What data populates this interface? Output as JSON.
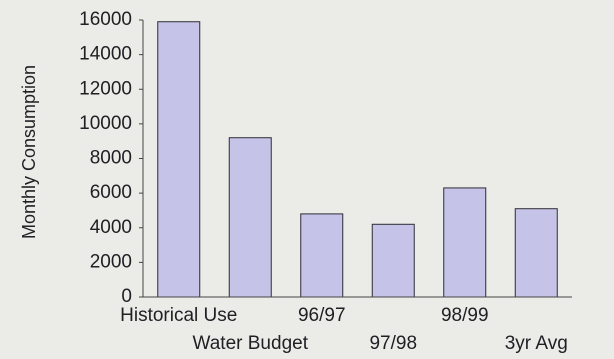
{
  "chart_data": {
    "type": "bar",
    "title": "",
    "xlabel": "",
    "ylabel": "Monthly Consumption",
    "ylim": [
      0,
      16000
    ],
    "yticks": [
      0,
      2000,
      4000,
      6000,
      8000,
      10000,
      12000,
      14000,
      16000
    ],
    "categories": [
      "Historical Use",
      "Water Budget",
      "96/97",
      "97/98",
      "98/99",
      "3yr Avg"
    ],
    "values": [
      15900,
      9200,
      4800,
      4200,
      6300,
      5100
    ],
    "bar_color": "#c5c3e8",
    "grid": false,
    "legend": "none"
  }
}
